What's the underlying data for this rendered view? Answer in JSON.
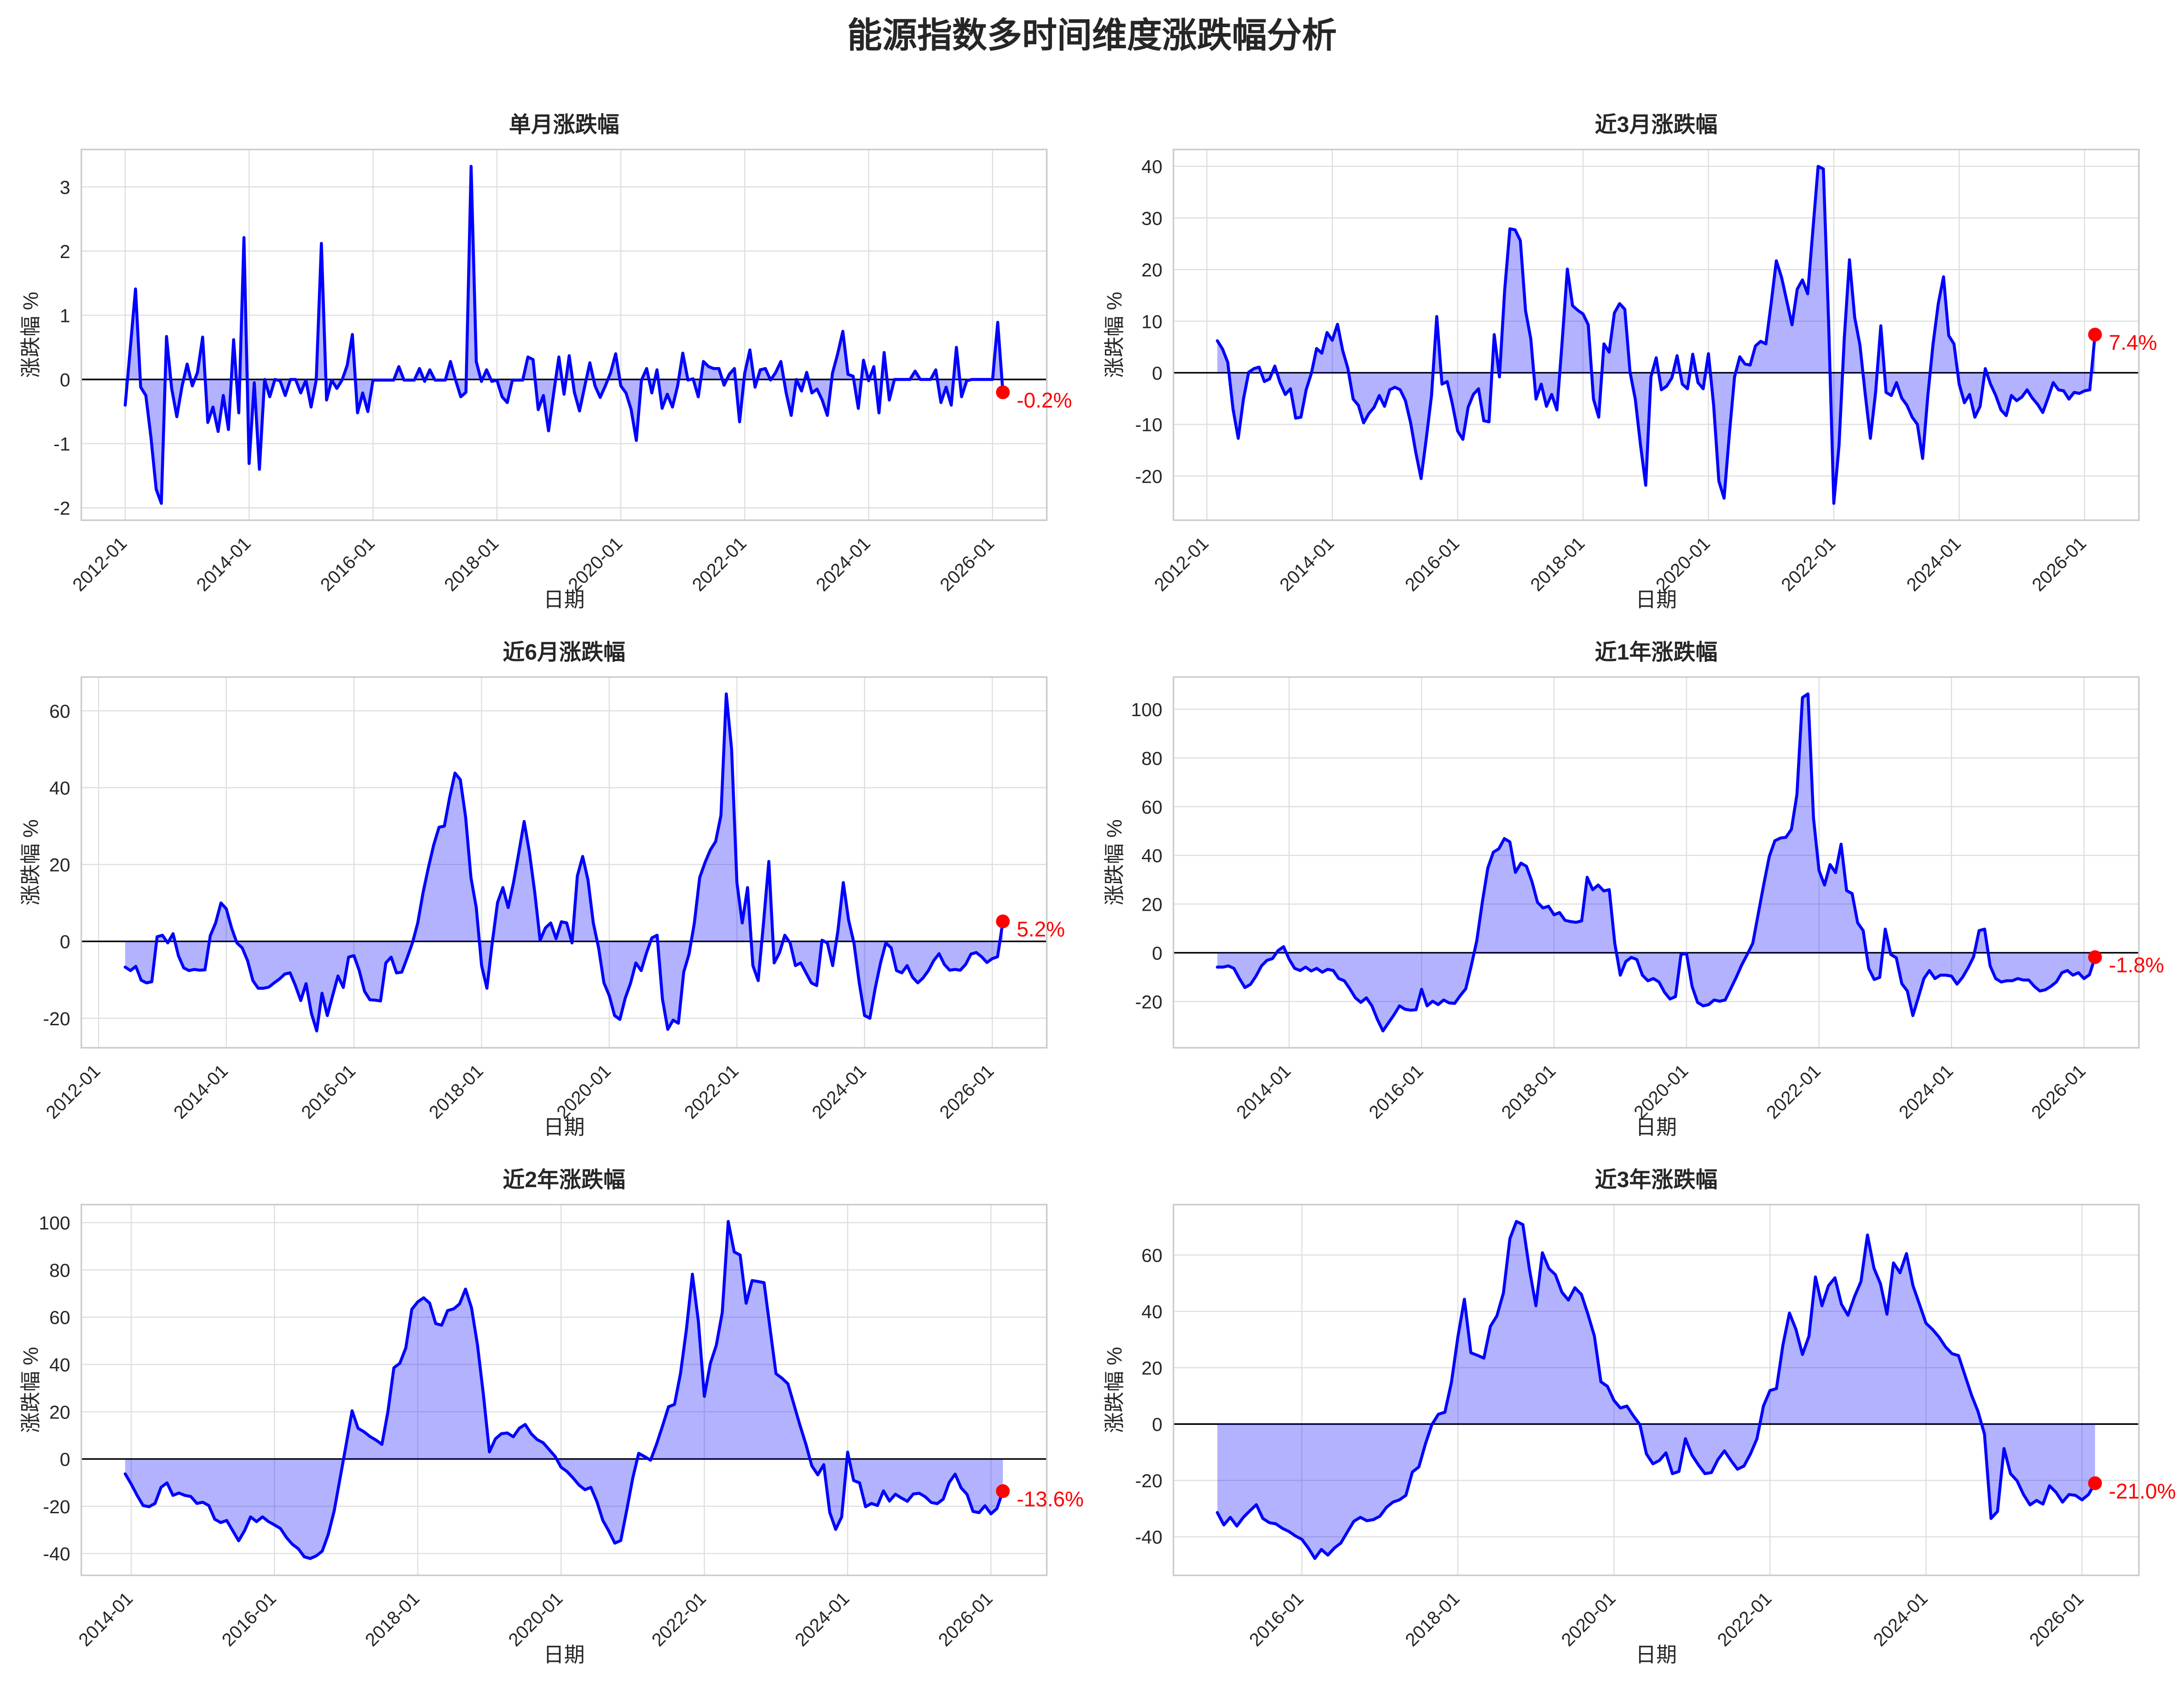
{
  "title": "能源指数多时间维度涨跌幅分析",
  "colors": {
    "line": "#0000ff",
    "fill_rgba": "rgba(0,0,255,0.3)",
    "zero_line": "#000000",
    "marker": "#ff0000",
    "annotation": "#ff0000",
    "grid": "#dedede",
    "frame": "#c9c9c9",
    "text": "#262626",
    "background": "#ffffff"
  },
  "chart_data": [
    {
      "type": "line",
      "title": "单月涨跌幅",
      "xlabel": "日期",
      "ylabel": "涨跌幅 %",
      "x_unit": "month",
      "start": "2012-01",
      "annotation": "-0.2%",
      "yticks": [
        -2,
        -1,
        0,
        1,
        2,
        3
      ],
      "xticks": [
        "2012-01",
        "2014-01",
        "2016-01",
        "2018-01",
        "2020-01",
        "2022-01",
        "2024-01",
        "2026-01"
      ],
      "values": [
        -0.4,
        0.5,
        1.41,
        -0.12,
        -0.25,
        -0.91,
        -1.71,
        -1.93,
        0.67,
        -0.14,
        -0.58,
        -0.11,
        0.24,
        -0.1,
        0.11,
        0.66,
        -0.67,
        -0.43,
        -0.81,
        -0.25,
        -0.78,
        0.62,
        -0.52,
        2.21,
        -1.31,
        -0.05,
        -1.4,
        0.0,
        -0.27,
        0.0,
        -0.02,
        -0.25,
        0.0,
        0.0,
        -0.21,
        -0.01,
        -0.43,
        -0.01,
        2.12,
        -0.32,
        -0.01,
        -0.14,
        -0.01,
        0.22,
        0.7,
        -0.52,
        -0.21,
        -0.5,
        -0.01,
        -0.01,
        -0.01,
        -0.01,
        -0.01,
        0.2,
        -0.01,
        -0.01,
        -0.01,
        0.17,
        -0.03,
        0.15,
        -0.01,
        -0.01,
        -0.01,
        0.28,
        -0.01,
        -0.27,
        -0.2,
        3.32,
        0.28,
        -0.03,
        0.15,
        -0.03,
        -0.01,
        -0.27,
        -0.36,
        -0.01,
        -0.01,
        -0.01,
        0.35,
        0.31,
        -0.47,
        -0.25,
        -0.8,
        -0.21,
        0.35,
        -0.23,
        0.37,
        -0.2,
        -0.49,
        -0.11,
        0.26,
        -0.1,
        -0.28,
        -0.1,
        0.1,
        0.4,
        -0.1,
        -0.21,
        -0.47,
        -0.95,
        -0.01,
        0.17,
        -0.21,
        0.15,
        -0.45,
        -0.23,
        -0.43,
        -0.1,
        0.41,
        -0.01,
        0.01,
        -0.27,
        0.28,
        0.2,
        0.17,
        0.17,
        -0.09,
        0.08,
        0.17,
        -0.66,
        0.1,
        0.46,
        -0.12,
        0.15,
        0.17,
        -0.01,
        0.11,
        0.28,
        -0.2,
        -0.56,
        0.0,
        -0.18,
        0.11,
        -0.21,
        -0.15,
        -0.32,
        -0.56,
        0.1,
        0.4,
        0.75,
        0.08,
        0.05,
        -0.45,
        0.3,
        -0.02,
        0.2,
        -0.52,
        0.42,
        -0.32,
        0.0,
        0.0,
        0.0,
        0.0,
        0.13,
        0.0,
        0.0,
        0.0,
        0.15,
        -0.36,
        -0.12,
        -0.4,
        0.5,
        -0.27,
        -0.02,
        0.0,
        0.0,
        0.0,
        0.0,
        0.0,
        0.89,
        -0.2
      ]
    },
    {
      "type": "line",
      "title": "近3月涨跌幅",
      "xlabel": "日期",
      "ylabel": "涨跌幅 %",
      "x_unit": "month",
      "start": "2012-03",
      "annotation": "7.4%",
      "yticks": [
        -20,
        -10,
        0,
        10,
        20,
        30,
        40
      ],
      "xticks": [
        "2012-01",
        "2014-01",
        "2016-01",
        "2018-01",
        "2020-01",
        "2022-01",
        "2024-01",
        "2026-01"
      ],
      "values": [
        6.2,
        4.6,
        2.0,
        -7.0,
        -12.7,
        -5.1,
        0.1,
        0.8,
        1.1,
        -1.7,
        -1.2,
        1.3,
        -1.9,
        -4.2,
        -3.1,
        -8.8,
        -8.6,
        -3.3,
        -0.1,
        4.7,
        3.8,
        7.8,
        6.3,
        9.4,
        4.3,
        0.8,
        -5.1,
        -6.3,
        -9.7,
        -7.9,
        -6.7,
        -4.4,
        -6.5,
        -3.3,
        -2.8,
        -3.3,
        -5.4,
        -9.7,
        -15.5,
        -20.5,
        -12.7,
        -4.4,
        10.9,
        -2.2,
        -1.7,
        -6.1,
        -11.3,
        -12.9,
        -6.7,
        -4.2,
        -3.1,
        -9.3,
        -9.5,
        7.4,
        -0.8,
        16.0,
        27.9,
        27.7,
        25.6,
        12.0,
        6.6,
        -5.1,
        -2.2,
        -6.5,
        -4.2,
        -7.2,
        6.0,
        20.1,
        13.0,
        12.1,
        11.4,
        9.3,
        -5.1,
        -8.6,
        5.6,
        4.0,
        11.6,
        13.4,
        12.3,
        0.1,
        -5.1,
        -14.0,
        -21.8,
        -0.8,
        2.9,
        -3.3,
        -2.6,
        -1.0,
        3.3,
        -2.2,
        -3.1,
        3.6,
        -1.9,
        -3.1,
        3.7,
        -6.3,
        -21.0,
        -24.3,
        -12.0,
        -0.8,
        3.1,
        1.7,
        1.5,
        5.2,
        6.1,
        5.6,
        13.4,
        21.7,
        18.5,
        13.9,
        9.3,
        16.2,
        18.0,
        15.3,
        27.7,
        40.0,
        39.5,
        10.0,
        -25.3,
        -14.1,
        6.6,
        21.9,
        10.7,
        5.4,
        -4.0,
        -12.7,
        -3.8,
        9.1,
        -3.8,
        -4.4,
        -1.9,
        -4.9,
        -6.3,
        -8.6,
        -10.0,
        -16.6,
        -4.4,
        5.6,
        13.4,
        18.6,
        7.2,
        5.6,
        -2.2,
        -5.8,
        -4.2,
        -8.6,
        -6.5,
        0.8,
        -2.2,
        -4.4,
        -7.2,
        -8.3,
        -4.4,
        -5.4,
        -4.7,
        -3.3,
        -4.9,
        -6.1,
        -7.7,
        -4.9,
        -1.9,
        -3.3,
        -3.5,
        -5.1,
        -3.8,
        -4.0,
        -3.5,
        -3.3,
        7.4
      ]
    },
    {
      "type": "line",
      "title": "近6月涨跌幅",
      "xlabel": "日期",
      "ylabel": "涨跌幅 %",
      "x_unit": "month",
      "start": "2012-06",
      "annotation": "5.2%",
      "yticks": [
        -20,
        0,
        20,
        40,
        60
      ],
      "xticks": [
        "2012-01",
        "2014-01",
        "2016-01",
        "2018-01",
        "2020-01",
        "2022-01",
        "2024-01",
        "2026-01"
      ],
      "values": [
        -6.7,
        -7.6,
        -6.5,
        -10.1,
        -10.8,
        -10.5,
        1.2,
        1.6,
        -0.4,
        2.0,
        -3.7,
        -6.9,
        -7.6,
        -7.3,
        -7.5,
        -7.4,
        1.5,
        4.8,
        10.0,
        8.5,
        3.5,
        -0.4,
        -1.7,
        -5.0,
        -10.2,
        -12.2,
        -12.2,
        -11.9,
        -10.8,
        -9.8,
        -8.5,
        -8.2,
        -11.5,
        -15.4,
        -11.0,
        -18.7,
        -23.3,
        -13.5,
        -19.3,
        -14.1,
        -9.0,
        -12.0,
        -4.1,
        -3.7,
        -7.6,
        -13.0,
        -15.2,
        -15.3,
        -15.5,
        -5.6,
        -4.1,
        -8.2,
        -8.0,
        -4.3,
        -0.4,
        4.8,
        12.7,
        19.2,
        25.1,
        29.7,
        30.0,
        37.5,
        43.8,
        42.1,
        32.3,
        16.6,
        8.8,
        -6.3,
        -12.2,
        -0.4,
        10.1,
        14.0,
        8.8,
        15.3,
        23.1,
        31.2,
        23.1,
        12.7,
        0.3,
        3.5,
        4.8,
        0.7,
        5.1,
        4.8,
        -0.4,
        17.0,
        22.1,
        16.0,
        4.8,
        -1.7,
        -10.8,
        -14.1,
        -19.3,
        -20.3,
        -14.8,
        -10.9,
        -5.6,
        -7.6,
        -3.0,
        0.9,
        1.6,
        -15.0,
        -22.9,
        -20.5,
        -21.3,
        -8.0,
        -3.3,
        4.8,
        16.6,
        20.5,
        23.8,
        26.0,
        32.8,
        64.4,
        50.0,
        15.3,
        4.8,
        14.0,
        -6.3,
        -10.2,
        4.8,
        20.8,
        -5.6,
        -3.0,
        1.6,
        -0.4,
        -6.3,
        -5.6,
        -8.2,
        -10.8,
        -11.5,
        0.3,
        -0.4,
        -6.3,
        2.9,
        15.3,
        5.5,
        -0.4,
        -10.8,
        -19.3,
        -20.0,
        -12.2,
        -5.6,
        -0.4,
        -1.7,
        -7.6,
        -8.2,
        -6.3,
        -9.3,
        -10.8,
        -9.5,
        -7.6,
        -5.0,
        -3.2,
        -6.0,
        -7.5,
        -7.3,
        -7.5,
        -6.0,
        -3.3,
        -2.9,
        -4.0,
        -5.5,
        -4.5,
        -4.0,
        5.2
      ]
    },
    {
      "type": "line",
      "title": "近1年涨跌幅",
      "xlabel": "日期",
      "ylabel": "涨跌幅 %",
      "x_unit": "month",
      "start": "2012-12",
      "annotation": "-1.8%",
      "yticks": [
        -20,
        0,
        20,
        40,
        60,
        80,
        100
      ],
      "xticks": [
        "2014-01",
        "2016-01",
        "2018-01",
        "2020-01",
        "2022-01",
        "2024-01",
        "2026-01"
      ],
      "values": [
        -5.9,
        -5.9,
        -5.4,
        -6.4,
        -10.6,
        -14.3,
        -13.0,
        -9.6,
        -5.4,
        -3.1,
        -2.4,
        0.9,
        2.5,
        -2.6,
        -6.4,
        -7.3,
        -5.9,
        -7.5,
        -6.4,
        -8.0,
        -6.8,
        -7.3,
        -10.6,
        -11.5,
        -14.8,
        -18.5,
        -20.4,
        -18.5,
        -21.8,
        -27.4,
        -32.1,
        -28.8,
        -25.5,
        -21.8,
        -23.2,
        -23.6,
        -23.4,
        -15.0,
        -21.8,
        -19.9,
        -21.3,
        -19.4,
        -20.6,
        -20.8,
        -17.6,
        -14.8,
        -5.4,
        4.9,
        20.7,
        34.8,
        41.3,
        42.7,
        46.9,
        45.5,
        33.0,
        36.8,
        35.5,
        29.2,
        20.7,
        18.4,
        19.1,
        15.6,
        16.5,
        13.3,
        12.8,
        12.5,
        13.1,
        31.0,
        25.9,
        27.8,
        25.4,
        25.9,
        3.9,
        -9.2,
        -3.6,
        -1.9,
        -2.8,
        -9.2,
        -11.5,
        -10.6,
        -12.0,
        -16.2,
        -19.0,
        -18.0,
        -0.7,
        -0.3,
        -13.8,
        -20.4,
        -21.8,
        -21.3,
        -19.4,
        -19.9,
        -19.4,
        -14.8,
        -10.1,
        -5.0,
        -0.7,
        3.9,
        16.1,
        28.2,
        39.6,
        46.0,
        47.1,
        47.4,
        50.7,
        65.0,
        104.8,
        106.3,
        55.3,
        33.8,
        27.8,
        36.2,
        32.9,
        44.6,
        25.5,
        24.3,
        12.3,
        9.1,
        -6.4,
        -11.0,
        -10.1,
        9.7,
        -0.7,
        -2.1,
        -12.7,
        -15.7,
        -25.8,
        -18.3,
        -10.6,
        -7.3,
        -10.6,
        -9.2,
        -9.2,
        -9.6,
        -12.9,
        -10.1,
        -6.2,
        -1.7,
        9.1,
        9.7,
        -5.4,
        -10.6,
        -12.0,
        -11.5,
        -11.5,
        -10.6,
        -11.2,
        -11.2,
        -13.8,
        -15.7,
        -15.2,
        -13.8,
        -12.0,
        -8.2,
        -7.3,
        -9.2,
        -8.2,
        -10.6,
        -9.0,
        -1.8
      ]
    },
    {
      "type": "line",
      "title": "近2年涨跌幅",
      "xlabel": "日期",
      "ylabel": "涨跌幅 %",
      "x_unit": "month",
      "start": "2013-12",
      "annotation": "-13.6%",
      "yticks": [
        -40,
        -20,
        0,
        20,
        40,
        60,
        80,
        100
      ],
      "xticks": [
        "2014-01",
        "2016-01",
        "2018-01",
        "2020-01",
        "2022-01",
        "2024-01",
        "2026-01"
      ],
      "values": [
        -6.3,
        -10.6,
        -15.4,
        -19.7,
        -20.2,
        -18.8,
        -12.0,
        -10.1,
        -15.4,
        -14.4,
        -15.4,
        -15.9,
        -18.8,
        -18.3,
        -19.7,
        -25.5,
        -26.9,
        -26.0,
        -30.3,
        -34.6,
        -30.3,
        -24.5,
        -26.5,
        -24.5,
        -26.5,
        -27.9,
        -29.4,
        -33.2,
        -36.1,
        -38.0,
        -41.4,
        -42.1,
        -41.0,
        -39.0,
        -32.0,
        -22.0,
        -8.0,
        6.0,
        20.4,
        13.0,
        11.5,
        9.5,
        8.0,
        6.2,
        20.0,
        38.6,
        40.5,
        47.0,
        63.3,
        66.5,
        68.2,
        65.9,
        57.3,
        56.6,
        62.8,
        63.5,
        65.6,
        71.9,
        64.0,
        48.3,
        27.1,
        3.0,
        8.5,
        10.7,
        11.0,
        9.4,
        13.0,
        14.6,
        10.7,
        8.2,
        6.9,
        4.0,
        1.1,
        -3.5,
        -5.3,
        -8.0,
        -11.0,
        -13.0,
        -12.0,
        -18.0,
        -26.0,
        -30.5,
        -35.6,
        -34.5,
        -21.7,
        -8.2,
        2.4,
        1.0,
        -0.5,
        6.3,
        14.0,
        22.1,
        23.1,
        36.1,
        54.9,
        78.2,
        58.2,
        26.5,
        40.4,
        48.1,
        62.0,
        100.5,
        87.6,
        86.3,
        65.9,
        75.5,
        75.1,
        74.6,
        55.3,
        36.1,
        34.2,
        31.8,
        23.1,
        14.4,
        6.3,
        -2.9,
        -6.7,
        -2.4,
        -22.6,
        -29.8,
        -24.5,
        2.9,
        -9.1,
        -10.1,
        -20.2,
        -18.8,
        -19.7,
        -13.5,
        -17.8,
        -14.9,
        -16.5,
        -17.9,
        -14.8,
        -14.5,
        -16.0,
        -18.4,
        -18.9,
        -17.0,
        -10.0,
        -6.4,
        -12.2,
        -15.0,
        -22.2,
        -22.7,
        -19.8,
        -23.2,
        -21.0,
        -13.6
      ]
    },
    {
      "type": "line",
      "title": "近3年涨跌幅",
      "xlabel": "日期",
      "ylabel": "涨跌幅 %",
      "x_unit": "month",
      "start": "2014-12",
      "annotation": "-21.0%",
      "yticks": [
        -40,
        -20,
        0,
        20,
        40,
        60
      ],
      "xticks": [
        "2016-01",
        "2018-01",
        "2020-01",
        "2022-01",
        "2024-01",
        "2026-01"
      ],
      "values": [
        -31.4,
        -35.8,
        -33.1,
        -36.2,
        -33.1,
        -30.8,
        -28.6,
        -33.5,
        -35.0,
        -35.4,
        -37.0,
        -38.1,
        -39.7,
        -40.9,
        -44.0,
        -47.7,
        -44.5,
        -46.5,
        -44.0,
        -42.2,
        -38.3,
        -34.5,
        -33.1,
        -34.3,
        -33.9,
        -32.7,
        -29.6,
        -27.7,
        -26.9,
        -25.3,
        -17.0,
        -15.2,
        -7.1,
        -0.2,
        3.5,
        4.2,
        14.7,
        30.9,
        44.3,
        25.3,
        24.4,
        23.4,
        34.7,
        38.4,
        46.5,
        65.8,
        71.9,
        70.8,
        55.0,
        42.0,
        60.8,
        55.2,
        53.0,
        46.8,
        44.0,
        48.4,
        46.0,
        39.0,
        31.2,
        15.0,
        13.4,
        8.4,
        5.7,
        6.4,
        2.9,
        -0.2,
        -10.6,
        -14.1,
        -12.9,
        -10.2,
        -17.6,
        -16.8,
        -5.2,
        -11.0,
        -14.5,
        -17.6,
        -17.2,
        -12.6,
        -9.5,
        -12.9,
        -16.0,
        -14.9,
        -10.6,
        -5.2,
        6.4,
        11.9,
        12.6,
        28.1,
        39.4,
        33.6,
        24.7,
        31.2,
        52.2,
        42.0,
        49.1,
        51.9,
        42.5,
        38.6,
        45.2,
        50.6,
        67.1,
        55.3,
        49.8,
        39.0,
        57.2,
        53.7,
        60.5,
        49.1,
        42.5,
        35.8,
        33.6,
        30.9,
        27.4,
        25.0,
        24.3,
        17.3,
        10.3,
        4.5,
        -3.6,
        -33.5,
        -31.0,
        -8.7,
        -17.6,
        -20.1,
        -25.0,
        -28.7,
        -27.1,
        -28.4,
        -21.9,
        -24.2,
        -27.7,
        -25.0,
        -25.3,
        -26.9,
        -25.0,
        -21.0
      ]
    }
  ]
}
